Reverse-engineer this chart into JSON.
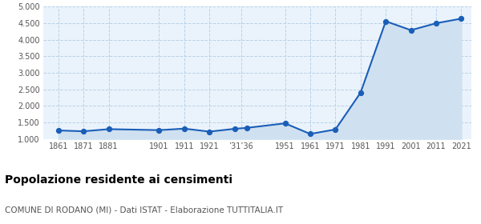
{
  "years": [
    1861,
    1871,
    1881,
    1901,
    1911,
    1921,
    1931,
    1936,
    1951,
    1961,
    1971,
    1981,
    1991,
    2001,
    2011,
    2021
  ],
  "population": [
    1255,
    1230,
    1295,
    1265,
    1310,
    1220,
    1305,
    1335,
    1470,
    1150,
    1285,
    2400,
    4560,
    4290,
    4500,
    4640
  ],
  "x_tick_positions": [
    1861,
    1871,
    1881,
    1901,
    1911,
    1921,
    1933.5,
    1951,
    1961,
    1971,
    1981,
    1991,
    2001,
    2011,
    2021
  ],
  "x_tick_labels": [
    "1861",
    "1871",
    "1881",
    "1901",
    "1911",
    "1921",
    "’31’36",
    "1951",
    "1961",
    "1971",
    "1981",
    "1991",
    "2001",
    "2011",
    "2021"
  ],
  "line_color": "#1a5eb8",
  "fill_color": "#cfe0f0",
  "marker_color": "#1a5eb8",
  "bg_color": "#eaf3fb",
  "grid_color": "#b8d0e8",
  "title": "Popolazione residente ai censimenti",
  "subtitle": "COMUNE DI RODANO (MI) - Dati ISTAT - Elaborazione TUTTITALIA.IT",
  "ylim_min": 1000,
  "ylim_max": 5000,
  "yticks": [
    1000,
    1500,
    2000,
    2500,
    3000,
    3500,
    4000,
    4500,
    5000
  ],
  "xlim_min": 1855,
  "xlim_max": 2025
}
